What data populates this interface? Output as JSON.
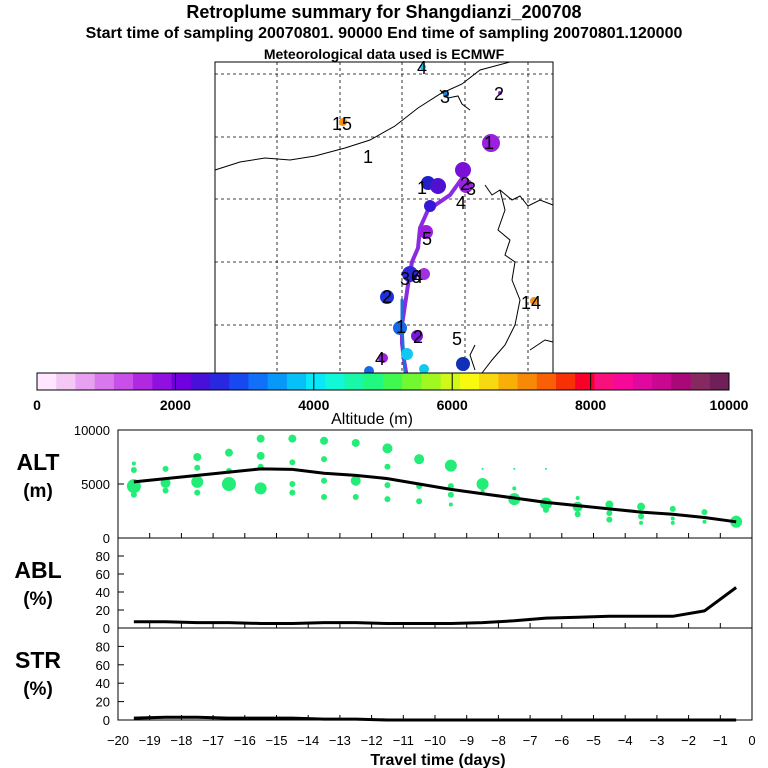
{
  "header": {
    "title": "Retroplume summary for Shangdianzi_200708",
    "sampling_line": "Start time of sampling 20070801. 90000     End time of sampling 20070801.120000",
    "met_line": "Meteorological data used is ECMWF"
  },
  "map": {
    "trajectory_labels": [
      "1",
      "2",
      "3",
      "4",
      "1",
      "2",
      "3",
      "4",
      "5",
      "6",
      "1",
      "2",
      "4",
      "5",
      "14",
      "15",
      "1",
      "3",
      "4",
      "2"
    ]
  },
  "colorbar": {
    "label": "Altitude (m)",
    "ticks": [
      "0",
      "2000",
      "4000",
      "6000",
      "8000",
      "10000"
    ],
    "range": [
      0,
      10000
    ],
    "colors": [
      "#ffe8ff",
      "#f4c8f4",
      "#e8a0f0",
      "#d878ec",
      "#c850e8",
      "#b028e0",
      "#9010e0",
      "#7000e0",
      "#4810d8",
      "#2828e0",
      "#1848f0",
      "#1070f8",
      "#0898f8",
      "#08c0f8",
      "#08e8f8",
      "#10f8d8",
      "#18f8a8",
      "#20f880",
      "#40f850",
      "#70f830",
      "#a0f820",
      "#d0f818",
      "#f8f810",
      "#f8d810",
      "#f8b008",
      "#f88808",
      "#f86008",
      "#f83008",
      "#f80028",
      "#f8107c",
      "#f80898",
      "#e008a0",
      "#c80890",
      "#a80878",
      "#882860",
      "#702058"
    ]
  },
  "chart_data": [
    {
      "type": "line",
      "panel": "ALT",
      "ylabel": "ALT (m)",
      "x": [
        -19.5,
        -18.5,
        -17.5,
        -16.5,
        -15.5,
        -14.5,
        -13.5,
        -12.5,
        -11.5,
        -10.5,
        -9.5,
        -8.5,
        -7.5,
        -6.5,
        -5.5,
        -4.5,
        -3.5,
        -2.5,
        -1.5,
        -0.5
      ],
      "y": [
        5200,
        5500,
        5800,
        6100,
        6400,
        6350,
        6000,
        5800,
        5500,
        5000,
        4500,
        4100,
        3700,
        3300,
        3000,
        2700,
        2400,
        2200,
        1900,
        1500
      ],
      "yticks": [
        "0",
        "5000",
        "10000"
      ],
      "ylim": [
        0,
        10000
      ],
      "scatter_points": [
        {
          "x": -19.5,
          "y": 4800,
          "size": 7
        },
        {
          "x": -19.5,
          "y": 6300,
          "size": 3
        },
        {
          "x": -19.5,
          "y": 4000,
          "size": 3
        },
        {
          "x": -19.5,
          "y": 6900,
          "size": 2
        },
        {
          "x": -18.5,
          "y": 5100,
          "size": 5
        },
        {
          "x": -18.5,
          "y": 6400,
          "size": 3
        },
        {
          "x": -18.5,
          "y": 4400,
          "size": 3
        },
        {
          "x": -17.5,
          "y": 5200,
          "size": 6
        },
        {
          "x": -17.5,
          "y": 7500,
          "size": 4
        },
        {
          "x": -17.5,
          "y": 6500,
          "size": 3
        },
        {
          "x": -17.5,
          "y": 4200,
          "size": 3
        },
        {
          "x": -16.5,
          "y": 5000,
          "size": 7
        },
        {
          "x": -16.5,
          "y": 7900,
          "size": 4
        },
        {
          "x": -16.5,
          "y": 6200,
          "size": 3
        },
        {
          "x": -15.5,
          "y": 4600,
          "size": 6
        },
        {
          "x": -15.5,
          "y": 9200,
          "size": 4
        },
        {
          "x": -15.5,
          "y": 7600,
          "size": 4
        },
        {
          "x": -15.5,
          "y": 6600,
          "size": 3
        },
        {
          "x": -14.5,
          "y": 9200,
          "size": 4
        },
        {
          "x": -14.5,
          "y": 7000,
          "size": 3
        },
        {
          "x": -14.5,
          "y": 5000,
          "size": 3
        },
        {
          "x": -14.5,
          "y": 4200,
          "size": 3
        },
        {
          "x": -13.5,
          "y": 9000,
          "size": 4
        },
        {
          "x": -13.5,
          "y": 7300,
          "size": 3
        },
        {
          "x": -13.5,
          "y": 5300,
          "size": 3
        },
        {
          "x": -13.5,
          "y": 3800,
          "size": 3
        },
        {
          "x": -12.5,
          "y": 8800,
          "size": 4
        },
        {
          "x": -12.5,
          "y": 5300,
          "size": 5
        },
        {
          "x": -12.5,
          "y": 3800,
          "size": 3
        },
        {
          "x": -11.5,
          "y": 8300,
          "size": 5
        },
        {
          "x": -11.5,
          "y": 6600,
          "size": 3
        },
        {
          "x": -11.5,
          "y": 4900,
          "size": 3
        },
        {
          "x": -11.5,
          "y": 3600,
          "size": 3
        },
        {
          "x": -10.5,
          "y": 7300,
          "size": 5
        },
        {
          "x": -10.5,
          "y": 4800,
          "size": 3
        },
        {
          "x": -10.5,
          "y": 3400,
          "size": 3
        },
        {
          "x": -9.5,
          "y": 6700,
          "size": 6
        },
        {
          "x": -9.5,
          "y": 4800,
          "size": 3
        },
        {
          "x": -9.5,
          "y": 4000,
          "size": 3
        },
        {
          "x": -9.5,
          "y": 3100,
          "size": 2
        },
        {
          "x": -8.5,
          "y": 5000,
          "size": 6
        },
        {
          "x": -8.5,
          "y": 6400,
          "size": 1
        },
        {
          "x": -8.5,
          "y": 4300,
          "size": 2
        },
        {
          "x": -7.5,
          "y": 3600,
          "size": 6
        },
        {
          "x": -7.5,
          "y": 6400,
          "size": 1
        },
        {
          "x": -7.5,
          "y": 4600,
          "size": 2
        },
        {
          "x": -6.5,
          "y": 3200,
          "size": 6
        },
        {
          "x": -6.5,
          "y": 6400,
          "size": 1
        },
        {
          "x": -6.5,
          "y": 2600,
          "size": 3
        },
        {
          "x": -5.5,
          "y": 2900,
          "size": 5
        },
        {
          "x": -5.5,
          "y": 3700,
          "size": 2
        },
        {
          "x": -5.5,
          "y": 2200,
          "size": 3
        },
        {
          "x": -4.5,
          "y": 3100,
          "size": 4
        },
        {
          "x": -4.5,
          "y": 2300,
          "size": 3
        },
        {
          "x": -4.5,
          "y": 1700,
          "size": 3
        },
        {
          "x": -3.5,
          "y": 2900,
          "size": 4
        },
        {
          "x": -3.5,
          "y": 2000,
          "size": 3
        },
        {
          "x": -3.5,
          "y": 1400,
          "size": 2
        },
        {
          "x": -2.5,
          "y": 2700,
          "size": 3
        },
        {
          "x": -2.5,
          "y": 1800,
          "size": 2
        },
        {
          "x": -2.5,
          "y": 1400,
          "size": 2
        },
        {
          "x": -1.5,
          "y": 2400,
          "size": 3
        },
        {
          "x": -1.5,
          "y": 1500,
          "size": 2
        },
        {
          "x": -0.5,
          "y": 1500,
          "size": 6
        },
        {
          "x": -0.5,
          "y": 1800,
          "size": 3
        }
      ]
    },
    {
      "type": "line",
      "panel": "ABL",
      "ylabel": "ABL (%)",
      "x": [
        -19.5,
        -18.5,
        -17.5,
        -16.5,
        -15.5,
        -14.5,
        -13.5,
        -12.5,
        -11.5,
        -10.5,
        -9.5,
        -8.5,
        -7.5,
        -6.5,
        -5.5,
        -4.5,
        -3.5,
        -2.5,
        -1.5,
        -0.5
      ],
      "y": [
        7,
        7,
        6,
        6,
        5,
        5,
        6,
        6,
        5,
        5,
        5,
        6,
        8,
        11,
        12,
        13,
        13,
        13,
        19,
        45
      ],
      "yticks": [
        "0",
        "20",
        "40",
        "60",
        "80"
      ],
      "ylim": [
        0,
        100
      ]
    },
    {
      "type": "line",
      "panel": "STR",
      "ylabel": "STR (%)",
      "x": [
        -19.5,
        -18.5,
        -17.5,
        -16.5,
        -15.5,
        -14.5,
        -13.5,
        -12.5,
        -11.5,
        -10.5,
        -9.5,
        -8.5,
        -7.5,
        -6.5,
        -5.5,
        -4.5,
        -3.5,
        -2.5,
        -1.5,
        -0.5
      ],
      "y": [
        2,
        3,
        3,
        2,
        2,
        2,
        1,
        1,
        0,
        0,
        0,
        0,
        0,
        0,
        0,
        0,
        0,
        0,
        0,
        0
      ],
      "yticks": [
        "0",
        "20",
        "40",
        "60",
        "80"
      ],
      "ylim": [
        0,
        100
      ]
    }
  ],
  "xaxis": {
    "label": "Travel time (days)",
    "ticks": [
      "−20",
      "−19",
      "−18",
      "−17",
      "−16",
      "−15",
      "−14",
      "−13",
      "−12",
      "−11",
      "−10",
      "−9",
      "−8",
      "−7",
      "−6",
      "−5",
      "−4",
      "−3",
      "−2",
      "−1",
      "0"
    ],
    "range": [
      -20,
      0
    ]
  }
}
